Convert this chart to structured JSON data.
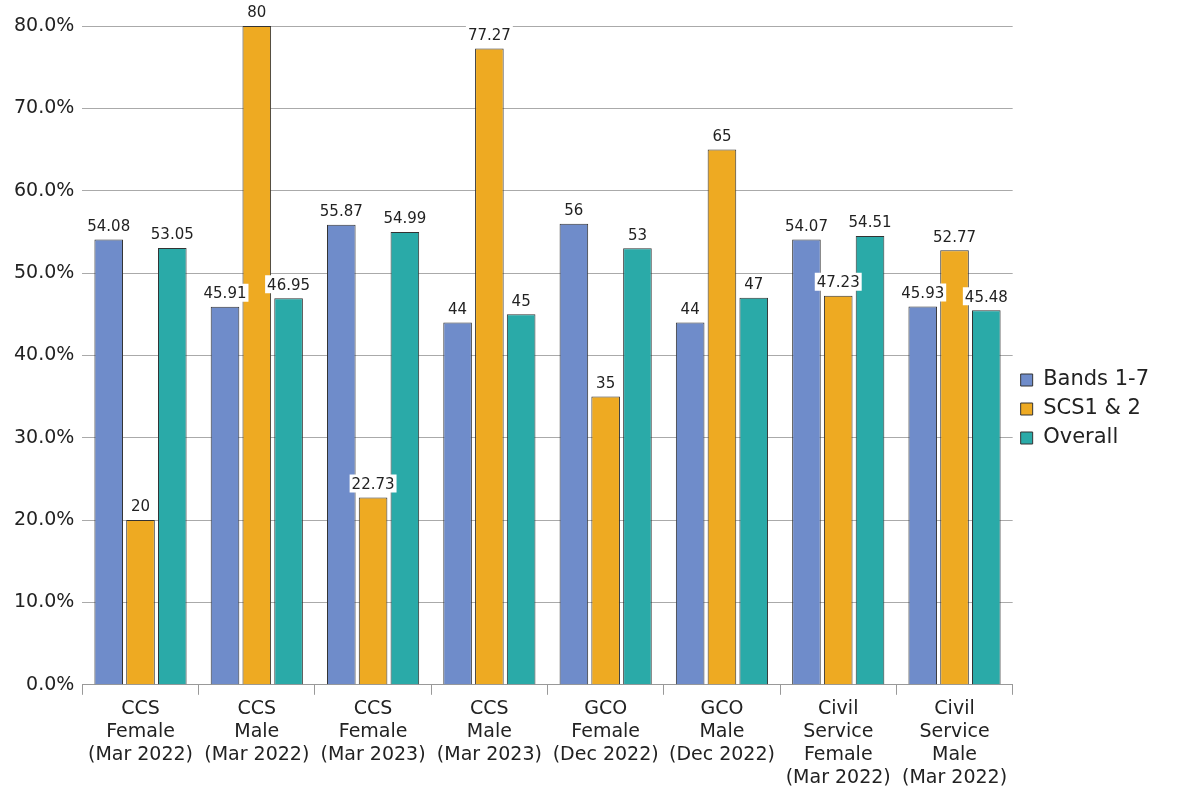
{
  "chart_data": {
    "type": "bar",
    "categories": [
      "CCS\nFemale\n(Mar 2022)",
      "CCS\nMale\n(Mar 2022)",
      "CCS\nFemale\n(Mar 2023)",
      "CCS\nMale\n(Mar 2023)",
      "GCO\nFemale\n(Dec 2022)",
      "GCO\nMale\n(Dec 2022)",
      "Civil\nService\nFemale\n(Mar 2022)",
      "Civil\nService\nMale\n(Mar 2022)"
    ],
    "series": [
      {
        "name": "Bands 1-7",
        "color": "#6f8cca",
        "values": [
          54.08,
          45.91,
          55.87,
          44,
          56,
          44,
          54.07,
          45.93
        ]
      },
      {
        "name": "SCS1 & 2",
        "color": "#eeaa22",
        "values": [
          20,
          80,
          22.73,
          77.27,
          35,
          65,
          47.23,
          52.77
        ]
      },
      {
        "name": "Overall",
        "color": "#2aaaa8",
        "values": [
          53.05,
          46.95,
          54.99,
          45,
          53,
          47,
          54.51,
          45.48
        ]
      }
    ],
    "ylim": [
      0,
      80
    ],
    "yticks": [
      {
        "value": 0,
        "label": "0.0%"
      },
      {
        "value": 10,
        "label": "10.0%"
      },
      {
        "value": 20,
        "label": "20.0%"
      },
      {
        "value": 30,
        "label": "30.0%"
      },
      {
        "value": 40,
        "label": "40.0%"
      },
      {
        "value": 50,
        "label": "50.0%"
      },
      {
        "value": 60,
        "label": "60.0%"
      },
      {
        "value": 70,
        "label": "70.0%"
      },
      {
        "value": 80,
        "label": "80.0%"
      }
    ],
    "grid": "y",
    "legend": "right",
    "data_labels": true
  }
}
